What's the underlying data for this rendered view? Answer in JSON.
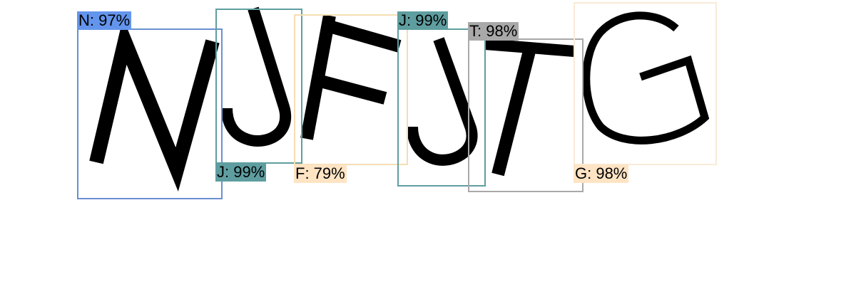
{
  "detections": [
    {
      "id": "n",
      "label": "N: 97%",
      "color": "#6495ed"
    },
    {
      "id": "j1",
      "label": "J: 99%",
      "color": "#5f9ea0"
    },
    {
      "id": "f",
      "label": "F: 79%",
      "color": "#ffe4c4"
    },
    {
      "id": "j2",
      "label": "J: 99%",
      "color": "#5f9ea0"
    },
    {
      "id": "t",
      "label": "T: 98%",
      "color": "#a9a9a9"
    },
    {
      "id": "g",
      "label": "G: 98%",
      "color": "#ffe4c4"
    }
  ]
}
